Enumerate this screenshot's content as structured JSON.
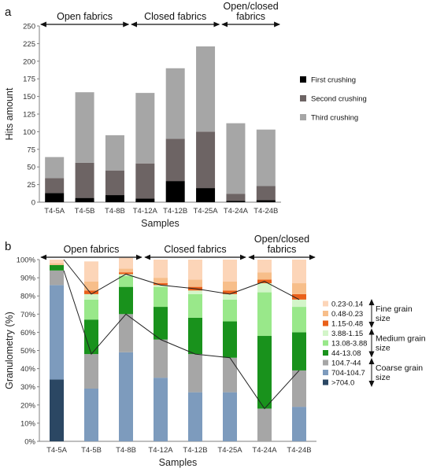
{
  "chart_data": [
    {
      "panel_label": "a",
      "type": "bar",
      "stacked": true,
      "xlabel": "Samples",
      "ylabel": "Hits amount",
      "ylim": [
        0,
        250
      ],
      "yticks": [
        0,
        25,
        50,
        75,
        100,
        125,
        150,
        175,
        200,
        225,
        250
      ],
      "categories": [
        "T4-5A",
        "T4-5B",
        "T4-8B",
        "T4-12A",
        "T4-12B",
        "T4-25A",
        "T4-24A",
        "T4-24B"
      ],
      "series": [
        {
          "name": "First crushing",
          "color": "#000000",
          "values": [
            13,
            6,
            10,
            5,
            30,
            20,
            2,
            3
          ]
        },
        {
          "name": "Second crushing",
          "color": "#6d6464",
          "values": [
            21,
            50,
            35,
            50,
            60,
            80,
            10,
            20
          ]
        },
        {
          "name": "Third crushing",
          "color": "#a6a6a6",
          "values": [
            30,
            100,
            50,
            100,
            100,
            121,
            100,
            80
          ]
        }
      ],
      "groups": [
        {
          "label": "Open fabrics",
          "from": 0,
          "to": 2
        },
        {
          "label": "Closed fabrics",
          "from": 3,
          "to": 5
        },
        {
          "label": "Open/closed\nfabrics",
          "from": 6,
          "to": 7
        }
      ],
      "legend_position": "right",
      "grid": false
    },
    {
      "panel_label": "b",
      "type": "bar",
      "stacked": true,
      "percent": true,
      "xlabel": "Samples",
      "ylabel": "Granulometry (%)",
      "ylim": [
        0,
        100
      ],
      "yticks": [
        "0%",
        "10%",
        "20%",
        "30%",
        "40%",
        "50%",
        "60%",
        "70%",
        "80%",
        "90%",
        "100%"
      ],
      "categories": [
        "T4-5A",
        "T4-5B",
        "T4-8B",
        "T4-12A",
        "T4-12B",
        "T4-25A",
        "T4-24A",
        "T4-24B"
      ],
      "series": [
        {
          "name": ">704.0",
          "color": "#2b4763",
          "values": [
            34,
            0,
            0,
            0,
            0,
            0,
            0,
            0
          ]
        },
        {
          "name": "704-104.7",
          "color": "#7d9bbd",
          "values": [
            52,
            29,
            49,
            35,
            27,
            27,
            0,
            19
          ]
        },
        {
          "name": "104.7-44",
          "color": "#a6a6a6",
          "values": [
            8,
            19,
            21,
            21,
            21,
            19,
            18,
            20
          ]
        },
        {
          "name": "44-13.08",
          "color": "#19921c",
          "values": [
            3,
            19,
            15,
            18,
            20,
            20,
            40,
            21
          ]
        },
        {
          "name": "13.08-3.88",
          "color": "#99e88a",
          "values": [
            0,
            11,
            6,
            11,
            13,
            12,
            24,
            14
          ]
        },
        {
          "name": "3.88-1.15",
          "color": "#d3f5c9",
          "values": [
            0,
            3,
            1,
            1,
            2,
            3,
            5,
            4
          ]
        },
        {
          "name": "1.15-0.48",
          "color": "#e9601a",
          "values": [
            0,
            2,
            1,
            1,
            2,
            2,
            2,
            3
          ]
        },
        {
          "name": "0.48-0.23",
          "color": "#f7be8a",
          "values": [
            1,
            5,
            2,
            3,
            4,
            5,
            4,
            6
          ]
        },
        {
          "name": "0.23-0.14",
          "color": "#fcd5b8",
          "values": [
            2,
            11,
            6,
            10,
            11,
            12,
            7,
            13
          ]
        }
      ],
      "connector_lines": [
        {
          "name": "coarse boundary",
          "values": [
            94,
            48,
            70,
            56,
            48,
            46,
            18,
            39
          ]
        },
        {
          "name": "medium boundary",
          "values": [
            100,
            81,
            92,
            86,
            84,
            81,
            88,
            78
          ]
        }
      ],
      "groups": [
        {
          "label": "Open fabrics",
          "from": 0,
          "to": 2
        },
        {
          "label": "Closed fabrics",
          "from": 3,
          "to": 5
        },
        {
          "label": "Open/closed\nfabrics",
          "from": 6,
          "to": 7
        }
      ],
      "legend_brackets": [
        {
          "label": "Fine grain\nsize",
          "from": 0,
          "to": 2
        },
        {
          "label": "Medium  grain\nsize",
          "from": 3,
          "to": 5
        },
        {
          "label": "Coarse grain\nsize",
          "from": 6,
          "to": 8
        }
      ],
      "legend_position": "right",
      "grid": false
    }
  ]
}
